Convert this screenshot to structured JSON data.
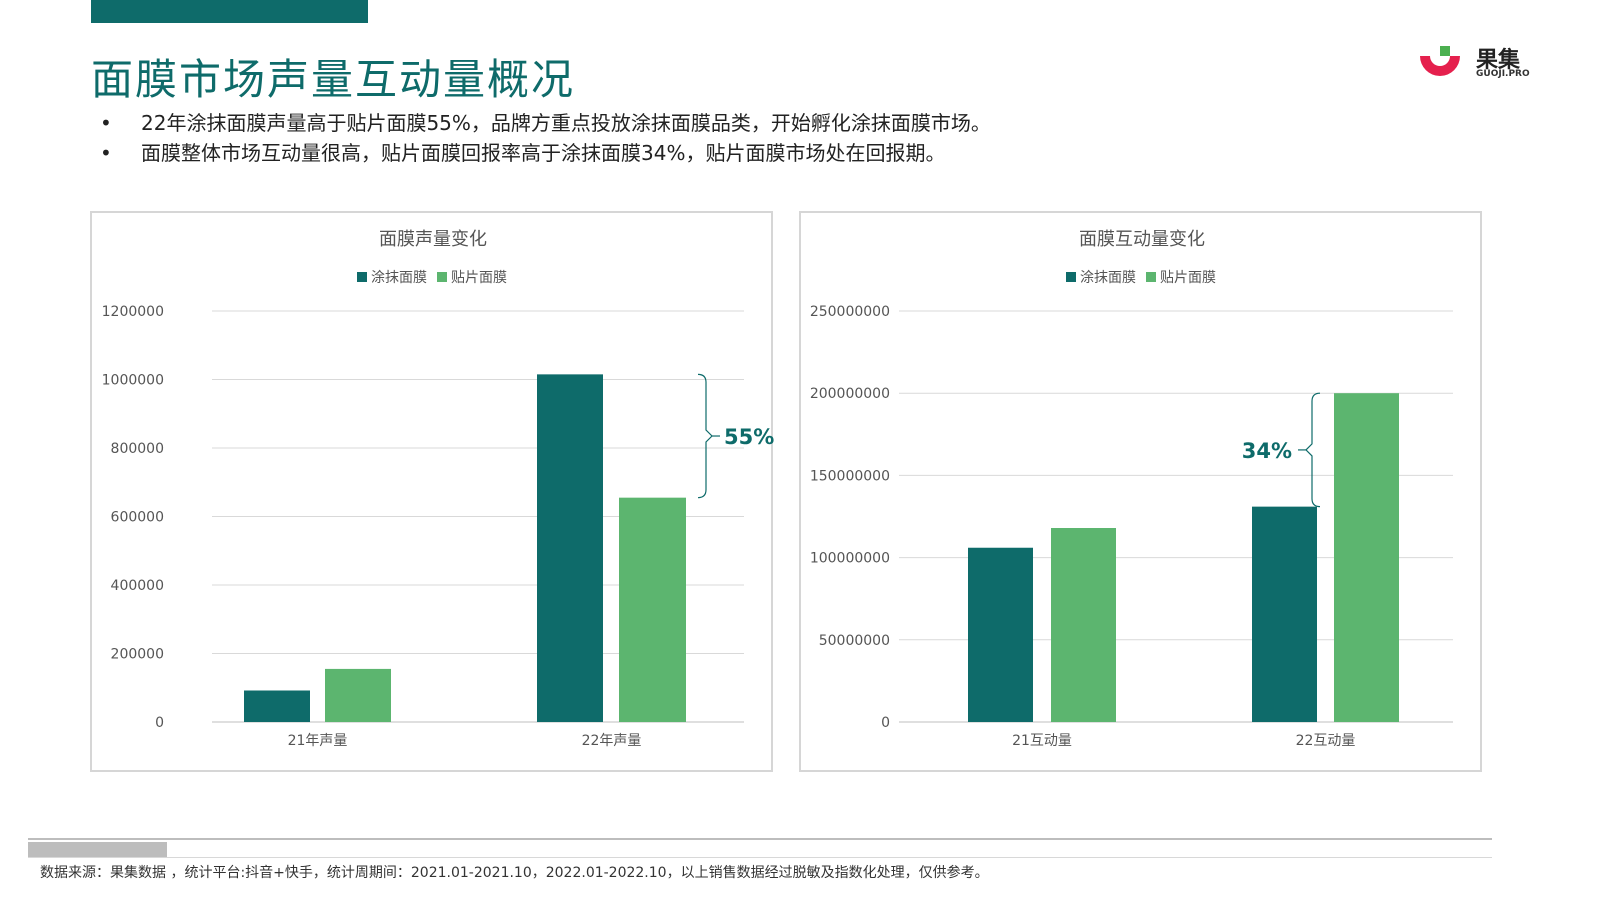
{
  "page": {
    "title": "面膜市场声量互动量概况",
    "bullets": [
      "22年涂抹面膜声量高于贴片面膜55%，品牌方重点投放涂抹面膜品类，开始孵化涂抹面膜市场。",
      "面膜整体市场互动量很高，贴片面膜回报率高于涂抹面膜34%，贴片面膜市场处在回报期。"
    ],
    "bullet_symbol": "•",
    "source_note": "数据来源：果集数据 ，统计平台:抖音+快手，统计周期间：2021.01-2021.10，2022.01-2022.10，以上销售数据经过脱敏及指数化处理，仅供参考。"
  },
  "logo": {
    "text": "果集",
    "subtext": "GUOJI.PRO",
    "colors": [
      "#e5204d",
      "#4caf50"
    ]
  },
  "colors": {
    "teal": "#0e6b6a",
    "green": "#5cb56f",
    "grid": "#d9d9d9",
    "text": "#555555"
  },
  "chart_data": [
    {
      "type": "bar",
      "title": "面膜声量变化",
      "categories": [
        "21年声量",
        "22年声量"
      ],
      "series": [
        {
          "name": "涂抹面膜",
          "color": "#0e6b6a",
          "values": [
            92000,
            1015000
          ]
        },
        {
          "name": "贴片面膜",
          "color": "#5cb56f",
          "values": [
            155000,
            655000
          ]
        }
      ],
      "ylim": [
        0,
        1200000
      ],
      "yticks": [
        0,
        200000,
        400000,
        600000,
        800000,
        1000000,
        1200000
      ],
      "ytick_labels": [
        "0",
        "200000",
        "400000",
        "600000",
        "800000",
        "1000000",
        "1200000"
      ],
      "legend": "top-center",
      "grid": true,
      "annotation": {
        "text": "55%",
        "category_index": 1,
        "from": 1015000,
        "to": 655000,
        "side": "right"
      }
    },
    {
      "type": "bar",
      "title": "面膜互动量变化",
      "categories": [
        "21互动量",
        "22互动量"
      ],
      "series": [
        {
          "name": "涂抹面膜",
          "color": "#0e6b6a",
          "values": [
            106000000,
            131000000
          ]
        },
        {
          "name": "贴片面膜",
          "color": "#5cb56f",
          "values": [
            118000000,
            200000000
          ]
        }
      ],
      "ylim": [
        0,
        250000000
      ],
      "yticks": [
        0,
        50000000,
        100000000,
        150000000,
        200000000,
        250000000
      ],
      "ytick_labels": [
        "0",
        "50000000",
        "100000000",
        "150000000",
        "200000000",
        "250000000"
      ],
      "legend": "top-center",
      "grid": true,
      "annotation": {
        "text": "34%",
        "category_index": 1,
        "from": 200000000,
        "to": 131000000,
        "side": "left"
      }
    }
  ]
}
